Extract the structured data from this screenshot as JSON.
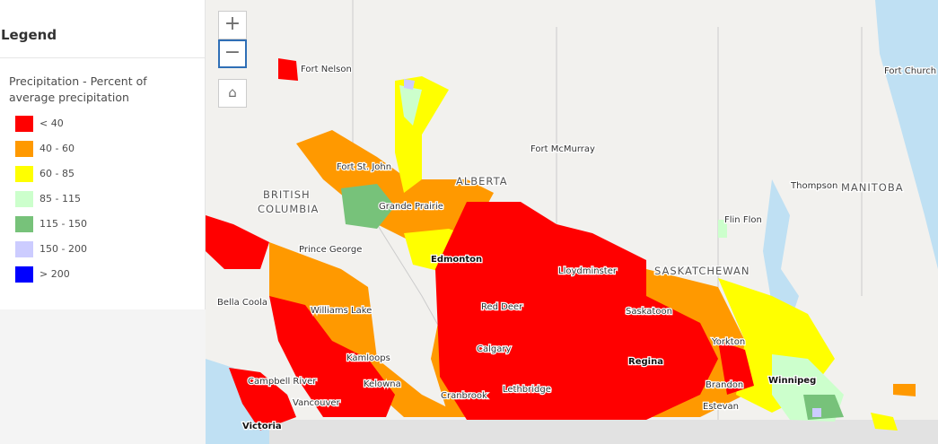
{
  "legend": {
    "title": "Legend",
    "layer": "Precipitation - Percent of average precipitation",
    "items": [
      {
        "label": "< 40",
        "color": "#ff0000"
      },
      {
        "label": "40 - 60",
        "color": "#ff9900"
      },
      {
        "label": "60 - 85",
        "color": "#ffff00"
      },
      {
        "label": "85 - 115",
        "color": "#ccffcc"
      },
      {
        "label": "115 - 150",
        "color": "#77c27a"
      },
      {
        "label": "150 - 200",
        "color": "#ccccff"
      },
      {
        "label": "> 200",
        "color": "#0000ff"
      }
    ]
  },
  "map": {
    "provinces": [
      [
        "BRITISH",
        "COLUMBIA"
      ],
      [
        "ALBERTA"
      ],
      [
        "SASKATCHEWAN"
      ],
      [
        "MANITOBA"
      ]
    ],
    "places": [
      "Fort Nelson",
      "Fort St. John",
      "Grande Prairie",
      "Fort McMurray",
      "Edmonton",
      "Lloydminster",
      "Prince George",
      "Bella Coola",
      "Williams Lake",
      "Red Deer",
      "Saskatoon",
      "Yorkton",
      "Calgary",
      "Kamloops",
      "Regina",
      "Campbell River",
      "Kelowna",
      "Lethbridge",
      "Cranbrook",
      "Vancouver",
      "Brandon",
      "Winnipeg",
      "Estevan",
      "Victoria",
      "Flin Flon",
      "Thompson",
      "Fort Church"
    ]
  }
}
